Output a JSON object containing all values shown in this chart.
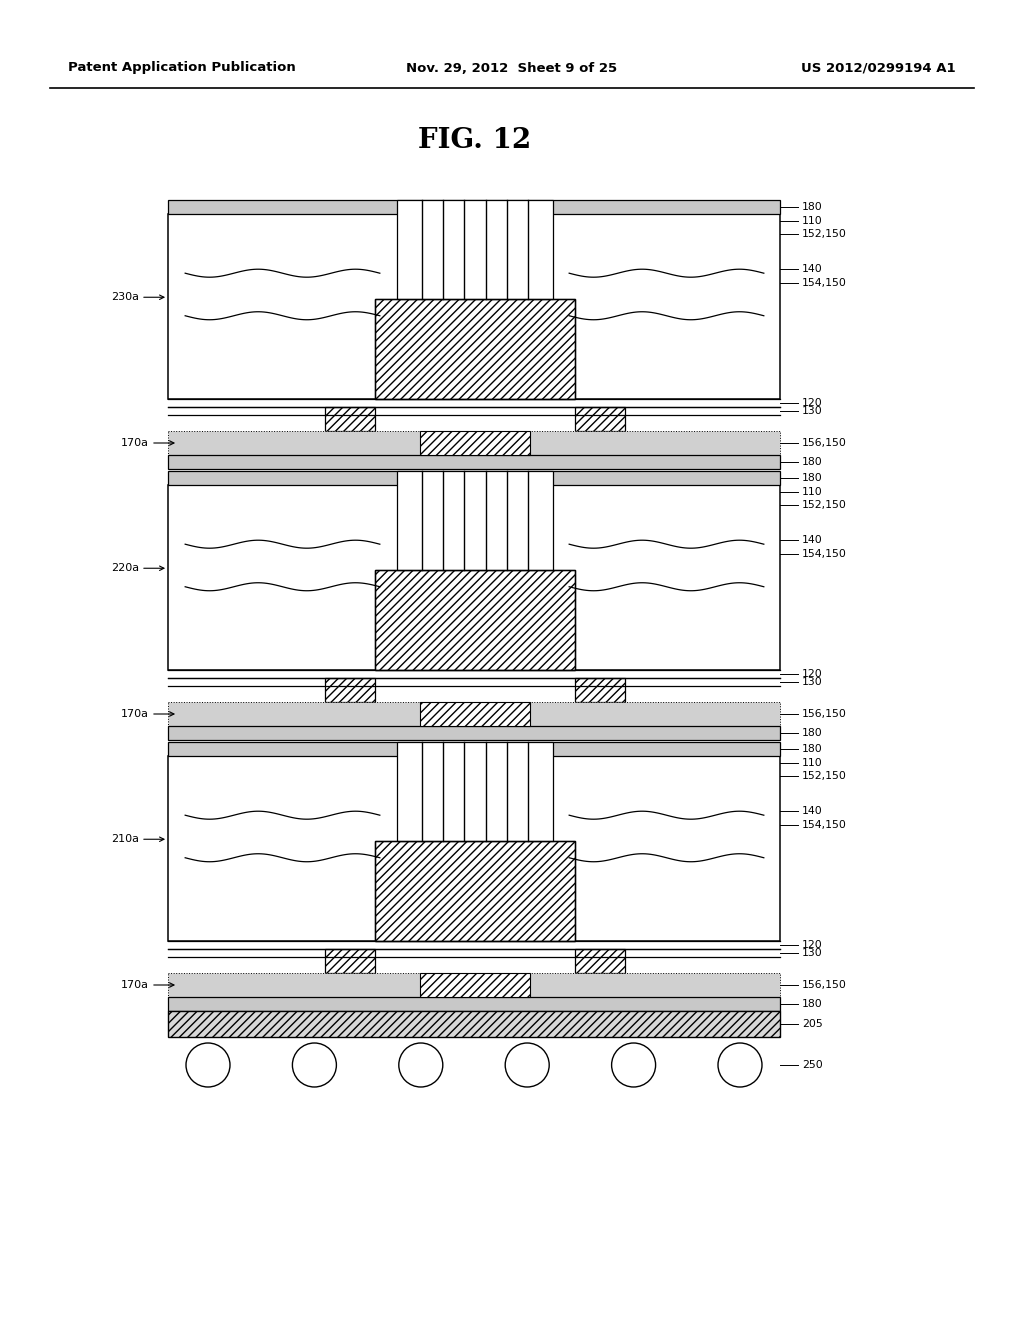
{
  "title": "FIG. 12",
  "header_left": "Patent Application Publication",
  "header_mid": "Nov. 29, 2012  Sheet 9 of 25",
  "header_right": "US 2012/0299194 A1",
  "bg_color": "#ffffff"
}
